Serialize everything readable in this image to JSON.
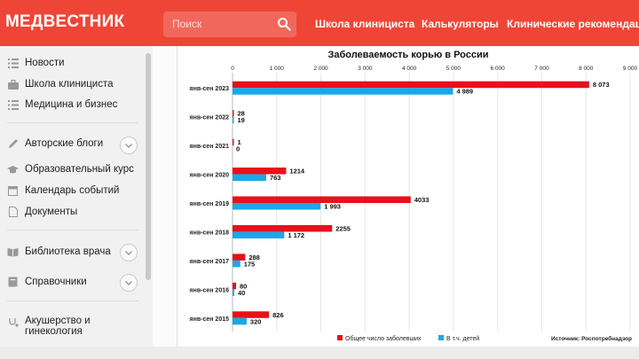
{
  "header": {
    "logo": "МЕДВЕСТНИК",
    "search_placeholder": "Поиск",
    "nav": [
      "Школа клинициста",
      "Калькуляторы",
      "Клинические рекомендации"
    ]
  },
  "sidebar": {
    "items": [
      {
        "label": "Новости",
        "icon": "list-icon"
      },
      {
        "label": "Школа клинициста",
        "icon": "briefcase-icon"
      },
      {
        "label": "Медицина и бизнес",
        "icon": "list-icon"
      },
      {
        "label": "Авторские блоги",
        "icon": "pen-icon",
        "expandable": true
      },
      {
        "label": "Образовательный курс",
        "icon": "graduation-cap-icon"
      },
      {
        "label": "Календарь событий",
        "icon": "calendar-icon"
      },
      {
        "label": "Документы",
        "icon": "document-icon"
      },
      {
        "label": "Библиотека врача",
        "icon": "book-icon",
        "expandable": true
      },
      {
        "label": "Справочники",
        "icon": "handbook-icon",
        "expandable": true
      },
      {
        "label": "Акушерство и гинекология",
        "icon": "stethoscope-icon"
      }
    ]
  },
  "colors": {
    "brand": "#ef4537",
    "series_total": "#e8101b",
    "series_children": "#1aa8e8"
  },
  "chart_data": {
    "type": "bar",
    "orientation": "horizontal",
    "title": "Заболеваемость корью в России",
    "categories": [
      "янв-сен 2023",
      "янв-сен 2022",
      "янв-сен 2021",
      "янв-сен 2020",
      "янв-сен 2019",
      "янв-сен 2018",
      "янв-сен 2017",
      "янв-сен 2016",
      "янв-сен 2015"
    ],
    "series": [
      {
        "name": "Общее число заболевших",
        "values": [
          8073,
          28,
          1,
          1214,
          4033,
          2255,
          288,
          80,
          826
        ],
        "labels": [
          "8 073",
          "28",
          "1",
          "1214",
          "4033",
          "2255",
          "288",
          "80",
          "826"
        ]
      },
      {
        "name": "В т.ч. детей",
        "values": [
          4989,
          19,
          0,
          763,
          1993,
          1172,
          175,
          40,
          320
        ],
        "labels": [
          "4 989",
          "19",
          "0",
          "763",
          "1 993",
          "1 172",
          "175",
          "40",
          "320"
        ]
      }
    ],
    "xlim": [
      0,
      9000
    ],
    "ticks": [
      0,
      1000,
      2000,
      3000,
      4000,
      5000,
      6000,
      7000,
      8000,
      9000
    ],
    "tick_labels": [
      "0",
      "1 000",
      "2 000",
      "3 000",
      "4 000",
      "5 000",
      "6 000",
      "7 000",
      "8 000",
      "9 000"
    ],
    "legend_position": "bottom",
    "source": "Источник: Роспотребнадзор"
  }
}
